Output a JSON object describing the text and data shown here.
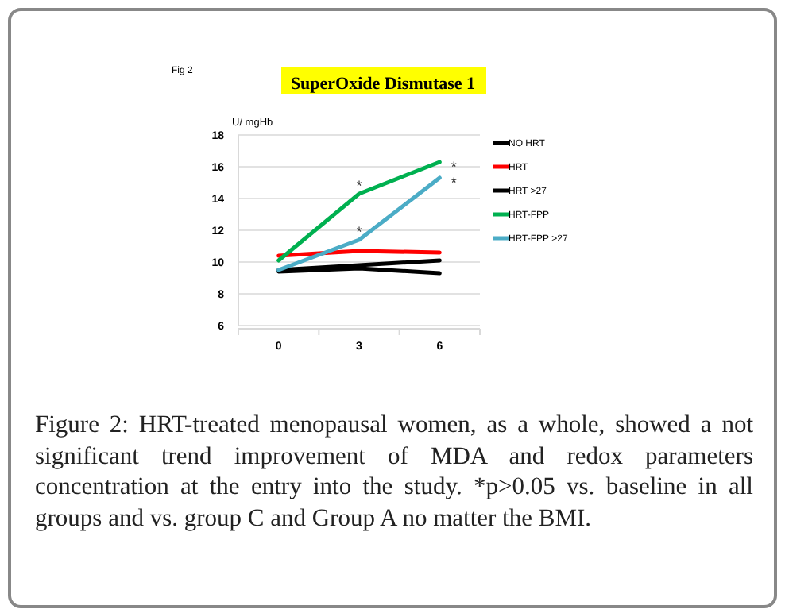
{
  "chart_data": {
    "type": "line",
    "title": "SuperOxide Dismutase 1",
    "ylabel": "U/ mgHb",
    "categories": [
      "0",
      "3",
      "6"
    ],
    "ylim": [
      6,
      18
    ],
    "yticks": [
      6,
      8,
      10,
      12,
      14,
      16,
      18
    ],
    "grid": "y",
    "legend": "right",
    "marker": "none",
    "line_style": "solid",
    "series": [
      {
        "name": "NO HRT",
        "color": "#000000",
        "values": [
          9.5,
          9.8,
          10.1
        ]
      },
      {
        "name": "HRT",
        "color": "#ff0000",
        "values": [
          10.4,
          10.7,
          10.6
        ]
      },
      {
        "name": "HRT >27",
        "color": "#000000",
        "values": [
          9.4,
          9.6,
          9.3
        ]
      },
      {
        "name": "HRT-FPP",
        "color": "#00b050",
        "values": [
          10.1,
          14.3,
          16.3
        ]
      },
      {
        "name": "HRT-FPP >27",
        "color": "#4bacc6",
        "values": [
          9.5,
          11.4,
          15.3
        ]
      }
    ],
    "annotations": [
      "Fig 2",
      {
        "text": "*",
        "x": "3",
        "y": 14.3
      },
      {
        "text": "*",
        "x": "3",
        "y": 11.4
      },
      {
        "text": "*",
        "x": "6",
        "y": 16.3
      },
      {
        "text": "*",
        "x": "6",
        "y": 15.3
      },
      "Figure 2: HRT-treated menopausal women, as a whole, showed a not significant trend improvement of MDA and redox parameters concentration at the entry into the study. *p>0.05 vs. baseline in all groups and vs. group C and Group A no matter the BMI."
    ]
  }
}
